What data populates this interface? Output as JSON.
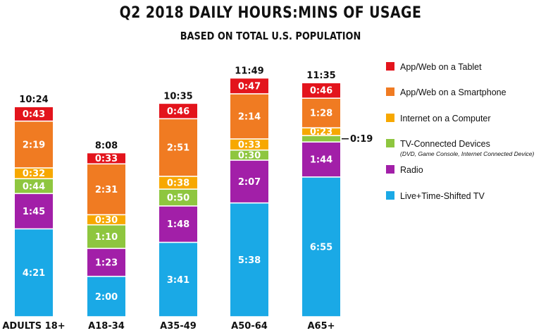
{
  "chart_data": {
    "type": "bar",
    "stacked": true,
    "title": "Q2 2018 DAILY HOURS:MINS OF USAGE",
    "subtitle": "BASED ON TOTAL U.S. POPULATION",
    "categories": [
      "ADULTS 18+",
      "A18-34",
      "A35-49",
      "A50-64",
      "A65+"
    ],
    "totals": [
      "10:24",
      "8:08",
      "10:35",
      "11:49",
      "11:35"
    ],
    "series": [
      {
        "name": "Live+Time-Shifted TV",
        "color": "#1aa9e6",
        "values": [
          261,
          120,
          221,
          338,
          415
        ],
        "labels": [
          "4:21",
          "2:00",
          "3:41",
          "5:38",
          "6:55"
        ]
      },
      {
        "name": "Radio",
        "color": "#a21fa8",
        "values": [
          105,
          83,
          108,
          127,
          104
        ],
        "labels": [
          "1:45",
          "1:23",
          "1:48",
          "2:07",
          "1:44"
        ]
      },
      {
        "name": "TV-Connected Devices",
        "note": "(DVD, Game Console, Internet Connected Device)",
        "color": "#8ec63f",
        "values": [
          44,
          70,
          50,
          30,
          19
        ],
        "labels": [
          "0:44",
          "1:10",
          "0:50",
          "0:30",
          "0:19"
        ]
      },
      {
        "name": "Internet on a Computer",
        "color": "#f7a800",
        "values": [
          32,
          30,
          38,
          33,
          23
        ],
        "labels": [
          "0:32",
          "0:30",
          "0:38",
          "0:33",
          "0:23"
        ]
      },
      {
        "name": "App/Web on a Smartphone",
        "color": "#f07b22",
        "values": [
          139,
          151,
          171,
          134,
          88
        ],
        "labels": [
          "2:19",
          "2:31",
          "2:51",
          "2:14",
          "1:28"
        ]
      },
      {
        "name": "App/Web on a Tablet",
        "color": "#e3141c",
        "values": [
          43,
          33,
          46,
          47,
          46
        ],
        "labels": [
          "0:43",
          "0:33",
          "0:46",
          "0:47",
          "0:46"
        ]
      }
    ],
    "callout": {
      "category": "A65+",
      "series": "TV-Connected Devices",
      "label": "0:19"
    },
    "legend_order": [
      "App/Web on a Tablet",
      "App/Web on a Smartphone",
      "Internet on a Computer",
      "TV-Connected Devices",
      "Radio",
      "Live+Time-Shifted TV"
    ],
    "legend_position": "right",
    "ylim": [
      0,
      729
    ],
    "grid": false
  }
}
